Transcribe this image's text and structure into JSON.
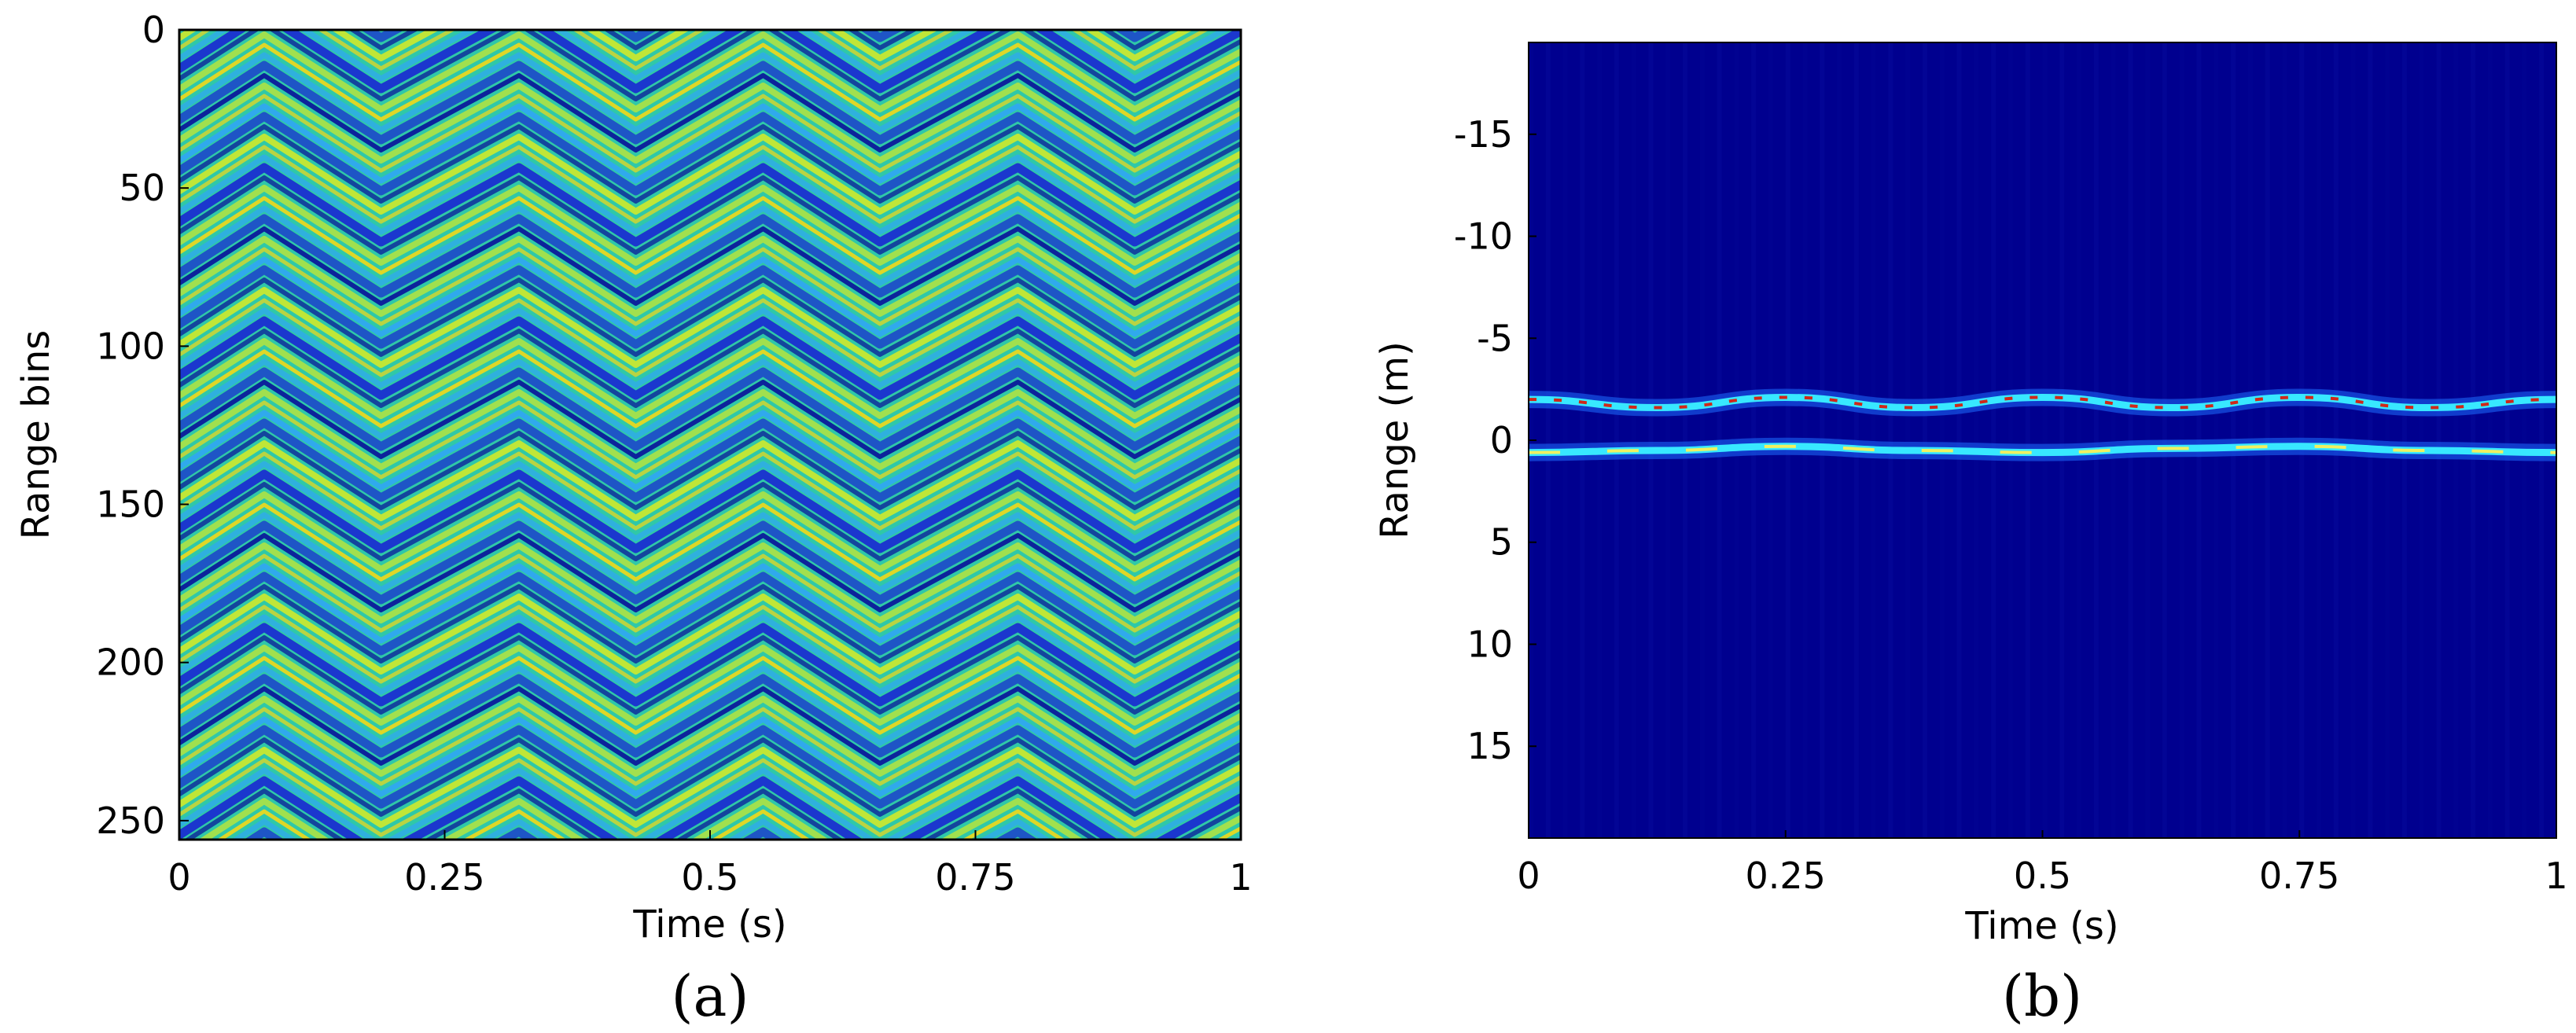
{
  "chart_data": [
    {
      "type": "heatmap",
      "panel_label": "(a)",
      "xlabel": "Time (s)",
      "ylabel": "Range bins",
      "xlim": [
        0,
        1
      ],
      "ylim": [
        0,
        256
      ],
      "y_reversed": true,
      "x_ticks": [
        "0",
        "0.25",
        "0.5",
        "0.75",
        "1"
      ],
      "x_tick_values": [
        0,
        0.25,
        0.5,
        0.75,
        1
      ],
      "y_ticks": [
        "0",
        "50",
        "100",
        "150",
        "200",
        "250"
      ],
      "y_tick_values": [
        0,
        50,
        100,
        150,
        200,
        250
      ],
      "colormap": "jet",
      "chevron_peak_times": [
        0.08,
        0.19,
        0.32,
        0.43,
        0.55,
        0.66,
        0.79,
        0.9
      ]
    },
    {
      "type": "heatmap",
      "panel_label": "(b)",
      "xlabel": "Time (s)",
      "ylabel": "Range (m)",
      "xlim": [
        0,
        1
      ],
      "ylim": [
        -19.5,
        19.5
      ],
      "y_reversed": true,
      "x_ticks": [
        "0",
        "0.25",
        "0.5",
        "0.75",
        "1"
      ],
      "x_tick_values": [
        0,
        0.25,
        0.5,
        0.75,
        1
      ],
      "y_ticks": [
        "-15",
        "-10",
        "-5",
        "0",
        "5",
        "10",
        "15"
      ],
      "y_tick_values": [
        -15,
        -10,
        -5,
        0,
        5,
        10,
        15
      ],
      "colormap": "jet",
      "background_color": "#00008f",
      "traces": [
        {
          "x": [
            0,
            0.125,
            0.25,
            0.375,
            0.5,
            0.625,
            0.75,
            0.875,
            1
          ],
          "y": [
            -2.0,
            -1.6,
            -2.1,
            -1.6,
            -2.1,
            -1.6,
            -2.1,
            -1.6,
            -2.0
          ]
        },
        {
          "x": [
            0,
            0.125,
            0.25,
            0.375,
            0.5,
            0.625,
            0.75,
            0.875,
            1
          ],
          "y": [
            0.6,
            0.5,
            0.3,
            0.5,
            0.6,
            0.4,
            0.3,
            0.5,
            0.6
          ]
        }
      ]
    }
  ]
}
